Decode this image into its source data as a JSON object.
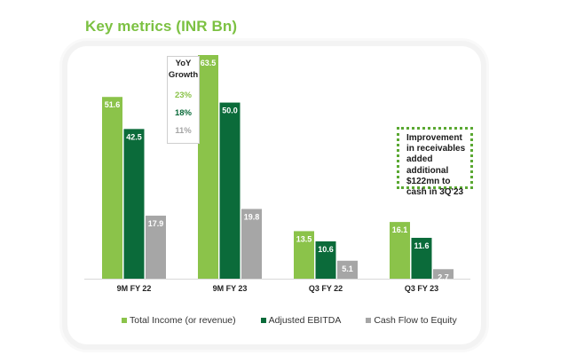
{
  "title": "Key metrics (INR Bn)",
  "colors": {
    "title": "#7cc142",
    "total_income": "#8bc34a",
    "adjusted_ebitda": "#0b6b3a",
    "cash_flow": "#a6a6a6",
    "yoy_total": "#8bc34a",
    "yoy_ebitda": "#0b6b3a",
    "yoy_cash": "#a6a6a6"
  },
  "yoy": {
    "heading_line1": "YoY",
    "heading_line2": "Growth",
    "values": [
      "23%",
      "18%",
      "11%"
    ]
  },
  "note": {
    "lines": [
      "Improvement",
      "in receivables",
      "added",
      "additional",
      "$122mn to",
      "cash in 3Q'23"
    ]
  },
  "chart_data": {
    "type": "bar",
    "title": "Key metrics (INR Bn)",
    "xlabel": "",
    "ylabel": "",
    "ylim": [
      0,
      63.5
    ],
    "grid": false,
    "legend_position": "bottom",
    "categories": [
      "9M FY 22",
      "9M FY 23",
      "Q3 FY 22",
      "Q3 FY 23"
    ],
    "series": [
      {
        "name": "Total Income (or revenue)",
        "color_key": "total_income",
        "values": [
          51.6,
          63.5,
          13.5,
          16.1
        ],
        "labels": [
          "51.6",
          "63.5",
          "13.5",
          "16.1"
        ]
      },
      {
        "name": "Adjusted EBITDA",
        "color_key": "adjusted_ebitda",
        "values": [
          42.5,
          50.0,
          10.6,
          11.6
        ],
        "labels": [
          "42.5",
          "50.0",
          "10.6",
          "11.6"
        ]
      },
      {
        "name": "Cash Flow to Equity",
        "color_key": "cash_flow",
        "values": [
          17.9,
          19.8,
          5.1,
          2.7
        ],
        "labels": [
          "17.9",
          "19.8",
          "5.1",
          "2.7"
        ]
      }
    ]
  }
}
